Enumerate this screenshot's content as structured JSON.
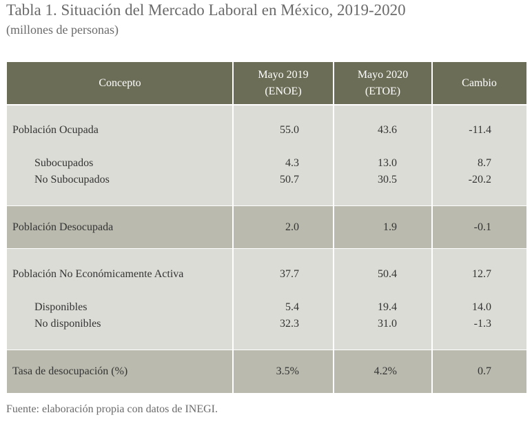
{
  "title": "Tabla 1. Situación del Mercado Laboral en México, 2019-2020",
  "subtitle": "(millones de personas)",
  "table": {
    "header": [
      [
        "Concepto"
      ],
      [
        "Mayo 2019",
        "(ENOE)"
      ],
      [
        "Mayo 2020",
        "(ETOE)"
      ],
      [
        "Cambio"
      ]
    ],
    "groups": [
      {
        "main": [
          "Población Ocupada",
          "55.0",
          "43.6",
          "-11.4"
        ],
        "subitems": [
          [
            "Subocupados",
            "4.3",
            "13.0",
            "8.7"
          ],
          [
            "No Subocupados",
            "50.7",
            "30.5",
            "-20.2"
          ]
        ]
      },
      {
        "main": [
          "Población Desocupada",
          "2.0",
          "1.9",
          "-0.1"
        ],
        "subitems": []
      },
      {
        "main": [
          "Población No Económicamente Activa",
          "37.7",
          "50.4",
          "12.7"
        ],
        "subitems": [
          [
            "Disponibles",
            "5.4",
            "19.4",
            "14.0"
          ],
          [
            "No disponibles",
            "32.3",
            "31.0",
            "-1.3"
          ]
        ]
      },
      {
        "main": [
          "Tasa de desocupación (%)",
          "3.5%",
          "4.2%",
          "0.7"
        ],
        "subitems": []
      }
    ]
  },
  "footnote": "Fuente: elaboración propia con datos de INEGI."
}
